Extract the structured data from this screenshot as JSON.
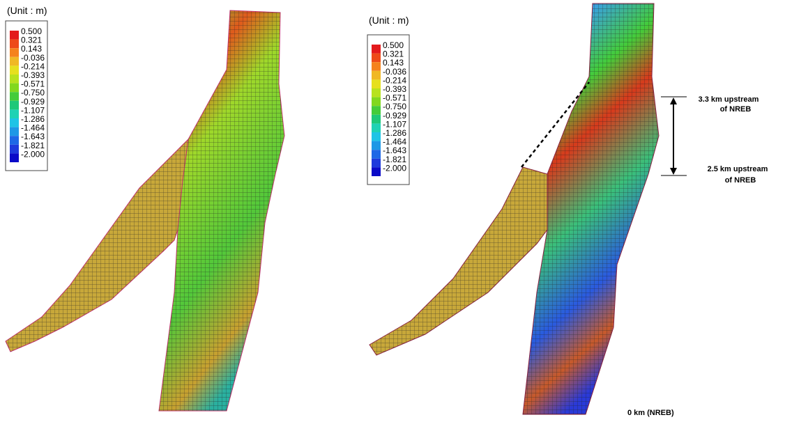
{
  "panels": [
    {
      "unit_label": "(Unit : m)",
      "legend": {
        "levels": [
          "0.500",
          "0.321",
          "0.143",
          "-0.036",
          "-0.214",
          "-0.393",
          "-0.571",
          "-0.750",
          "-0.929",
          "-1.107",
          "-1.286",
          "-1.464",
          "-1.643",
          "-1.821",
          "-2.000"
        ],
        "colors": [
          "#e31a1c",
          "#ee4a18",
          "#f5821c",
          "#f0b824",
          "#e6e01e",
          "#b8e21e",
          "#82d81e",
          "#44cc3a",
          "#1ec878",
          "#1ed2b4",
          "#1ec4e6",
          "#1e98e6",
          "#1e68e6",
          "#1e3adc",
          "#0a0ac8"
        ]
      }
    },
    {
      "unit_label": "(Unit : m)",
      "legend": {
        "levels": [
          "0.500",
          "0.321",
          "0.143",
          "-0.036",
          "-0.214",
          "-0.393",
          "-0.571",
          "-0.750",
          "-0.929",
          "-1.107",
          "-1.286",
          "-1.464",
          "-1.643",
          "-1.821",
          "-2.000"
        ],
        "colors": [
          "#e31a1c",
          "#ee4a18",
          "#f5821c",
          "#f0b824",
          "#e6e01e",
          "#b8e21e",
          "#82d81e",
          "#44cc3a",
          "#1ec878",
          "#1ed2b4",
          "#1ec4e6",
          "#1e98e6",
          "#1e68e6",
          "#1e3adc",
          "#0a0ac8"
        ]
      },
      "annotations": {
        "upper": [
          "3.3 km upstream",
          "of NREB"
        ],
        "lower": [
          "2.5 km upstream",
          "of NREB"
        ],
        "origin": "0 km (NREB)"
      }
    }
  ]
}
